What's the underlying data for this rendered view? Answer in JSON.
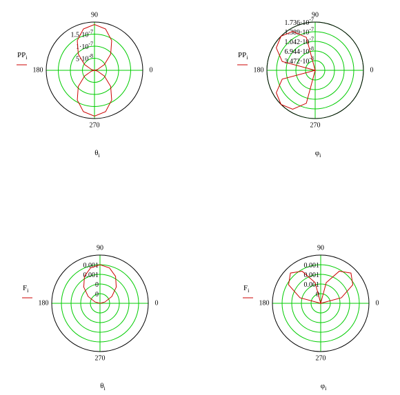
{
  "chart_data": [
    {
      "type": "polar",
      "xlabel": "θ",
      "xlabel_sub": "i",
      "ylabel": "PP",
      "ylabel_sub": "i",
      "rlim": [
        0,
        2e-07
      ],
      "rticks": [
        {
          "value": 5e-08,
          "label": "5·10",
          "exponent": "-8"
        },
        {
          "value": 1e-07,
          "label": "1·10",
          "exponent": "-7"
        },
        {
          "value": 1.5e-07,
          "label": "1.5·10",
          "exponent": "-7"
        }
      ],
      "angle_ticks": [
        90,
        180,
        270,
        0
      ],
      "grid": true,
      "grid_color": "#00cc00",
      "series": [
        {
          "color": "#cc0000",
          "x": [
            0,
            15,
            30,
            45,
            60,
            75,
            90,
            105,
            120,
            135,
            150,
            165,
            180,
            195,
            210,
            225,
            240,
            255,
            270,
            285,
            300,
            315,
            330,
            345,
            360
          ],
          "values": [
            0,
            1.27e-08,
            4.75e-08,
            9.5e-08,
            1.425e-07,
            1.773e-07,
            1.9e-07,
            1.773e-07,
            1.425e-07,
            9.5e-08,
            4.75e-08,
            1.27e-08,
            0,
            1.27e-08,
            4.75e-08,
            9.5e-08,
            1.425e-07,
            1.773e-07,
            1.9e-07,
            1.773e-07,
            1.425e-07,
            9.5e-08,
            4.75e-08,
            1.27e-08,
            0
          ]
        }
      ]
    },
    {
      "type": "polar",
      "xlabel": "φ",
      "xlabel_sub": "i",
      "ylabel": "PP",
      "ylabel_sub": "i",
      "rlim": [
        0,
        1.736e-07
      ],
      "rticks": [
        {
          "value": 3.472e-08,
          "label": "3.472·10",
          "exponent": "-8"
        },
        {
          "value": 6.944e-08,
          "label": "6.944·10",
          "exponent": "-8"
        },
        {
          "value": 1.042e-07,
          "label": "1.042·10",
          "exponent": "-7"
        },
        {
          "value": 1.389e-07,
          "label": "1.389·10",
          "exponent": "-7"
        },
        {
          "value": 1.736e-07,
          "label": "1.736·10",
          "exponent": "-7"
        }
      ],
      "angle_ticks": [
        90,
        180,
        270,
        0
      ],
      "grid": true,
      "grid_color": "#00cc00",
      "series": [
        {
          "color": "#cc0000",
          "x": [
            90,
            105,
            120,
            135,
            150,
            165,
            180,
            195,
            210,
            225,
            240,
            255,
            270
          ],
          "values": [
            0,
            1.227e-07,
            1.616e-07,
            1.736e-07,
            1.616e-07,
            1.227e-07,
            0,
            1.227e-07,
            1.616e-07,
            1.736e-07,
            1.616e-07,
            1.227e-07,
            0
          ]
        }
      ]
    },
    {
      "type": "polar",
      "xlabel": "θ",
      "xlabel_sub": "i",
      "ylabel": "F",
      "ylabel_sub": "i",
      "rlim": [
        0,
        0.001
      ],
      "rticks": [
        {
          "value": 0.0002,
          "label": "0"
        },
        {
          "value": 0.0004,
          "label": "0"
        },
        {
          "value": 0.0006,
          "label": "0.001"
        },
        {
          "value": 0.0008,
          "label": "0.001"
        }
      ],
      "angle_ticks": [
        90,
        180,
        270,
        0
      ],
      "grid": true,
      "grid_color": "#00cc00",
      "series": [
        {
          "color": "#cc0000",
          "x": [
            0,
            15,
            30,
            45,
            60,
            75,
            90,
            105,
            120,
            135,
            150,
            165,
            180
          ],
          "values": [
            0,
            0.000105,
            0.000283,
            0.000476,
            0.000645,
            0.000759,
            0.0008,
            0.000759,
            0.000645,
            0.000476,
            0.000283,
            0.000105,
            0
          ]
        }
      ]
    },
    {
      "type": "polar",
      "xlabel": "φ",
      "xlabel_sub": "i",
      "ylabel": "F",
      "ylabel_sub": "i",
      "rlim": [
        0,
        0.0015
      ],
      "rticks": [
        {
          "value": 0.0003,
          "label": "0"
        },
        {
          "value": 0.0006,
          "label": "0.001"
        },
        {
          "value": 0.0009,
          "label": "0.001"
        },
        {
          "value": 0.0012,
          "label": "0.001"
        }
      ],
      "angle_ticks": [
        90,
        180,
        270,
        0
      ],
      "grid": true,
      "grid_color": "#00cc00",
      "series": [
        {
          "color": "#cc0000",
          "x": [
            0,
            15,
            30,
            45,
            60,
            75,
            90,
            105,
            120,
            135,
            150,
            165,
            180
          ],
          "values": [
            0,
            0.000665,
            0.001152,
            0.00133,
            0.001152,
            0.000665,
            0,
            0.000665,
            0.001152,
            0.00133,
            0.001152,
            0.000665,
            0
          ]
        }
      ]
    }
  ]
}
